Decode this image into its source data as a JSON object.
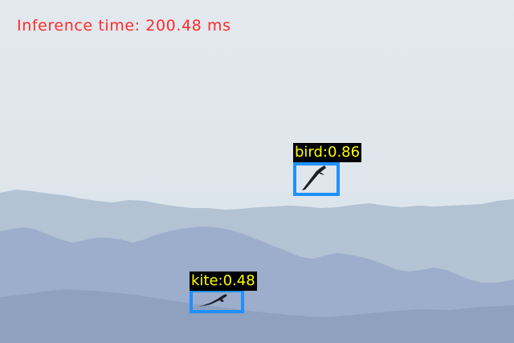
{
  "inference": {
    "text": "Inference time: 200.48 ms",
    "color": "#ff2a2a"
  },
  "detections": [
    {
      "label": "bird:0.86",
      "class": "bird",
      "score": 0.86,
      "box_color": "#1e90ff",
      "label_color": "#ffff00"
    },
    {
      "label": "kite:0.48",
      "class": "kite",
      "score": 0.48,
      "box_color": "#1e90ff",
      "label_color": "#ffff00"
    }
  ],
  "scene": {
    "sky_top": "#e3e9ee",
    "sky_bottom": "#dce4eb",
    "far_ridge": "#b2c2d4",
    "mid_ridge": "#9aaec7",
    "near_ridge": "#8b9dba",
    "bird_color": "#1a1f26"
  }
}
